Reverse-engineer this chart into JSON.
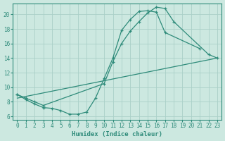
{
  "line1_x": [
    0,
    1,
    2,
    3,
    10,
    11,
    12,
    13,
    14,
    15,
    16,
    17,
    18,
    22,
    23
  ],
  "line1_y": [
    9.0,
    8.5,
    8.0,
    7.5,
    10.5,
    13.5,
    16.0,
    17.7,
    19.0,
    20.2,
    21.0,
    20.8,
    19.0,
    14.5,
    14.0
  ],
  "line2_x": [
    0,
    1,
    2,
    3,
    4,
    5,
    6,
    7,
    8,
    9,
    10,
    11,
    12,
    13,
    14,
    15,
    16,
    17,
    21
  ],
  "line2_y": [
    9.0,
    8.3,
    7.7,
    7.2,
    7.1,
    6.8,
    6.3,
    6.3,
    6.6,
    8.5,
    11.2,
    14.0,
    17.8,
    19.3,
    20.4,
    20.5,
    20.3,
    17.5,
    15.3
  ],
  "line3_x": [
    0,
    23
  ],
  "line3_y": [
    8.5,
    14.0
  ],
  "color": "#2e8b7a",
  "bg_color": "#cce8e0",
  "grid_color": "#aad0c8",
  "xlabel": "Humidex (Indice chaleur)",
  "xlim": [
    -0.5,
    23.5
  ],
  "ylim": [
    5.5,
    21.5
  ],
  "yticks": [
    6,
    8,
    10,
    12,
    14,
    16,
    18,
    20
  ],
  "xticks": [
    0,
    1,
    2,
    3,
    4,
    5,
    6,
    7,
    8,
    9,
    10,
    11,
    12,
    13,
    14,
    15,
    16,
    17,
    18,
    19,
    20,
    21,
    22,
    23
  ]
}
